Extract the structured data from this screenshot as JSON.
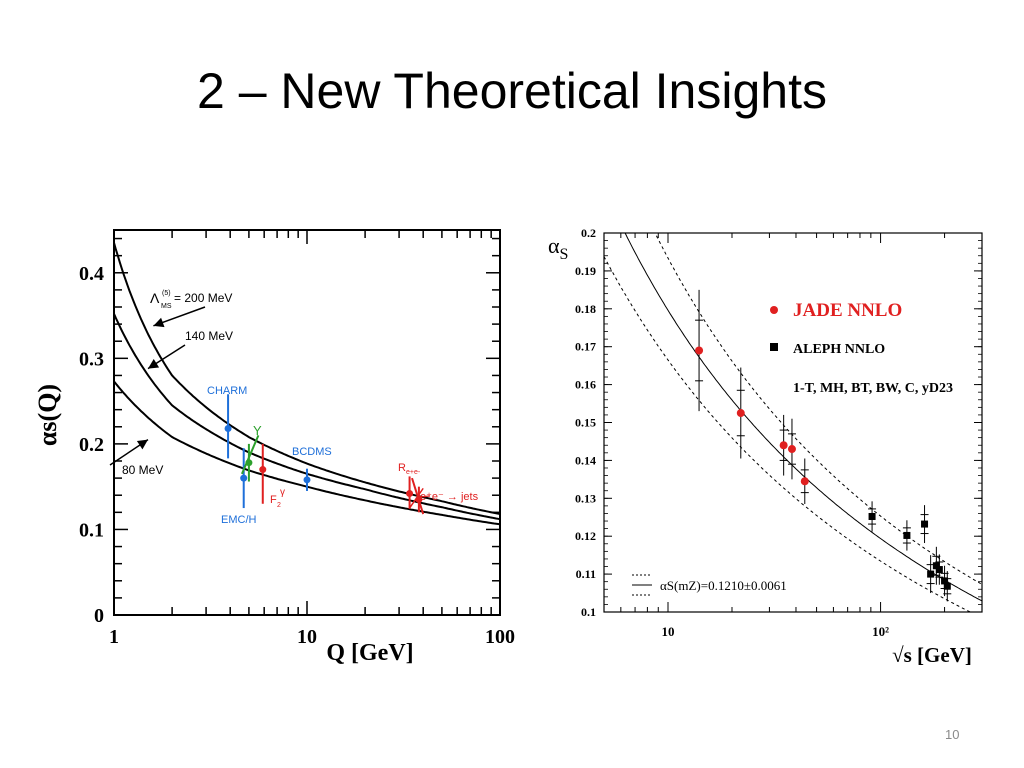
{
  "slide": {
    "title": "2 – New Theoretical Insights",
    "page_number": "10"
  },
  "colors": {
    "curve": "#000000",
    "charm": "#1e6fd9",
    "upsilon": "#2ca02c",
    "f2gamma": "#e02020",
    "bcdms": "#1e6fd9",
    "emc": "#1e6fd9",
    "ree": "#e02020",
    "jade": "#e02020",
    "aleph": "#000000"
  },
  "chart_data": [
    {
      "type": "line",
      "xscale": "log",
      "xlabel": "Q [GeV]",
      "ylabel": "αs(Q)",
      "xlim": [
        1,
        100
      ],
      "ylim": [
        0,
        0.45
      ],
      "xticks": [
        "1",
        "10",
        "100"
      ],
      "yticks": [
        "0",
        "0.1",
        "0.2",
        "0.3",
        "0.4"
      ],
      "series": [
        {
          "name": "Λ(5)MS = 200 MeV",
          "lambda": 0.2,
          "x": [
            1,
            2,
            5,
            10,
            20,
            50,
            100
          ],
          "values": [
            0.435,
            0.28,
            0.208,
            0.177,
            0.155,
            0.133,
            0.118
          ]
        },
        {
          "name": "140 MeV",
          "lambda": 0.14,
          "x": [
            1,
            2,
            5,
            10,
            20,
            50,
            100
          ],
          "values": [
            0.352,
            0.245,
            0.19,
            0.165,
            0.147,
            0.126,
            0.112
          ]
        },
        {
          "name": "80 MeV",
          "lambda": 0.08,
          "x": [
            1,
            2,
            5,
            10,
            20,
            50,
            100
          ],
          "values": [
            0.273,
            0.208,
            0.169,
            0.15,
            0.134,
            0.117,
            0.106
          ]
        }
      ],
      "curve_labels": [
        "Λ(5)MS = 200 MeV",
        "140 MeV",
        "80 MeV"
      ],
      "points": [
        {
          "name": "CHARM",
          "x": 3.9,
          "y": 0.218,
          "yerr": [
            0.035,
            0.04
          ],
          "color_key": "charm"
        },
        {
          "name": "Y",
          "x": 5.0,
          "y": 0.178,
          "yerr": [
            0.022,
            0.022
          ],
          "color_key": "upsilon"
        },
        {
          "name": "F2γ",
          "x": 5.9,
          "y": 0.17,
          "yerr": [
            0.04,
            0.03
          ],
          "color_key": "f2gamma"
        },
        {
          "name": "EMC/H",
          "x": 4.7,
          "y": 0.16,
          "yerr": [
            0.035,
            0.035
          ],
          "color_key": "emc"
        },
        {
          "name": "BCDMS",
          "x": 10.0,
          "y": 0.158,
          "yerr": [
            0.013,
            0.013
          ],
          "color_key": "bcdms"
        },
        {
          "name": "Re+e-",
          "x": 34.0,
          "y": 0.142,
          "yerr": [
            0.018,
            0.02
          ],
          "color_key": "ree"
        },
        {
          "name": "e+e- -> jets",
          "x": 38.0,
          "y": 0.135,
          "yerr": [
            0.015,
            0.015
          ],
          "color_key": "ree"
        }
      ],
      "annotations": {
        "lambda_label": "Λ",
        "lambda_super": "(5)",
        "lambda_sub": "MS",
        "lambda_value": "= 200 MeV",
        "label_140": "140 MeV",
        "label_80": "80 MeV",
        "charm": "CHARM",
        "upsilon": "Y",
        "f2gamma": "F",
        "f2gamma_sub": "2",
        "f2gamma_sup": "γ",
        "bcdms": "BCDMS",
        "emc": "EMC/H",
        "ree": "R",
        "ree_sub": "e+e-",
        "jets": "e⁺e⁻ → jets"
      }
    },
    {
      "type": "scatter",
      "xscale": "log",
      "xlabel": "√s [GeV]",
      "ylabel": "αS",
      "xlim": [
        5,
        300
      ],
      "ylim": [
        0.1,
        0.2
      ],
      "xticks": [
        "10",
        "10²"
      ],
      "yticks": [
        "0.1",
        "0.11",
        "0.12",
        "0.13",
        "0.14",
        "0.15",
        "0.16",
        "0.17",
        "0.18",
        "0.19",
        "0.2"
      ],
      "legend_position": "top-right",
      "series": [
        {
          "name": "JADE NNLO",
          "x": [
            14,
            22,
            35,
            38.3,
            44
          ],
          "values": [
            0.169,
            0.1525,
            0.144,
            0.143,
            0.1345
          ],
          "yerr": [
            0.016,
            0.012,
            0.008,
            0.008,
            0.006
          ]
        },
        {
          "name": "ALEPH NNLO",
          "x": [
            91.2,
            133,
            161,
            172,
            183,
            189,
            200,
            206
          ],
          "values": [
            0.1252,
            0.1202,
            0.1232,
            0.11,
            0.1122,
            0.1112,
            0.1082,
            0.1068
          ],
          "yerr": [
            0.004,
            0.004,
            0.005,
            0.005,
            0.005,
            0.004,
            0.004,
            0.004
          ]
        }
      ],
      "fit": {
        "label": "αS(mZ)=0.1210±0.0061",
        "alpha_mz": 0.121,
        "error": 0.0061
      },
      "legend": {
        "jade": "JADE NNLO",
        "aleph": "ALEPH NNLO",
        "observables": "1-T, MH, BT, BW, C, yD23"
      }
    }
  ]
}
